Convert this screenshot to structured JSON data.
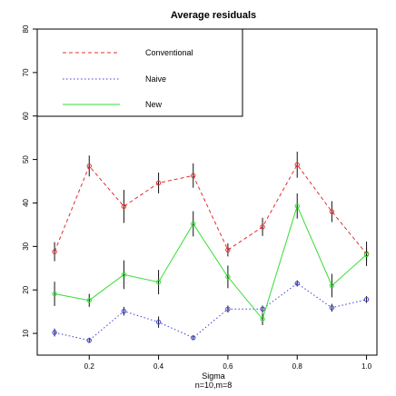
{
  "chart_data": {
    "type": "line",
    "title": "Average residuals",
    "xlabel": "Sigma",
    "subtitle": "n=10,m=8",
    "xlim": [
      0.05,
      1.03
    ],
    "ylim": [
      5,
      80
    ],
    "xticks": [
      0.2,
      0.4,
      0.6,
      0.8,
      1.0
    ],
    "xtick_labels": [
      "0.2",
      "0.4",
      "0.6",
      "0.8",
      "1.0"
    ],
    "yticks": [
      10,
      20,
      30,
      40,
      50,
      60,
      70,
      80
    ],
    "ytick_labels": [
      "10",
      "20",
      "30",
      "40",
      "50",
      "60",
      "70",
      "80"
    ],
    "legend_position": "top-left",
    "x": [
      0.1,
      0.2,
      0.3,
      0.4,
      0.5,
      0.6,
      0.7,
      0.8,
      0.9,
      1.0
    ],
    "series": [
      {
        "name": "Conventional",
        "color": "#e03030",
        "dash": "dashed",
        "values": [
          28.8,
          48.5,
          39.2,
          44.6,
          46.3,
          29.2,
          34.5,
          48.8,
          38.0,
          28.3
        ],
        "err": [
          2.2,
          2.4,
          3.8,
          2.4,
          2.8,
          1.5,
          2.1,
          3.0,
          2.4,
          2.8
        ]
      },
      {
        "name": "Naive",
        "color": "#4040d8",
        "dash": "dotted",
        "values": [
          10.2,
          8.4,
          15.1,
          12.6,
          9.0,
          15.6,
          15.6,
          21.5,
          15.9,
          17.8
        ],
        "err": [
          0.9,
          0.6,
          1.0,
          1.3,
          0.5,
          0.8,
          0.8,
          0.7,
          0.9,
          0.8
        ]
      },
      {
        "name": "New",
        "color": "#33dd33",
        "dash": "solid",
        "values": [
          19.1,
          17.6,
          23.5,
          21.8,
          35.2,
          23.0,
          13.3,
          39.3,
          21.0,
          28.1
        ],
        "err": [
          2.8,
          1.5,
          3.3,
          2.8,
          2.9,
          2.6,
          1.4,
          2.9,
          2.7,
          1.5
        ]
      }
    ]
  }
}
